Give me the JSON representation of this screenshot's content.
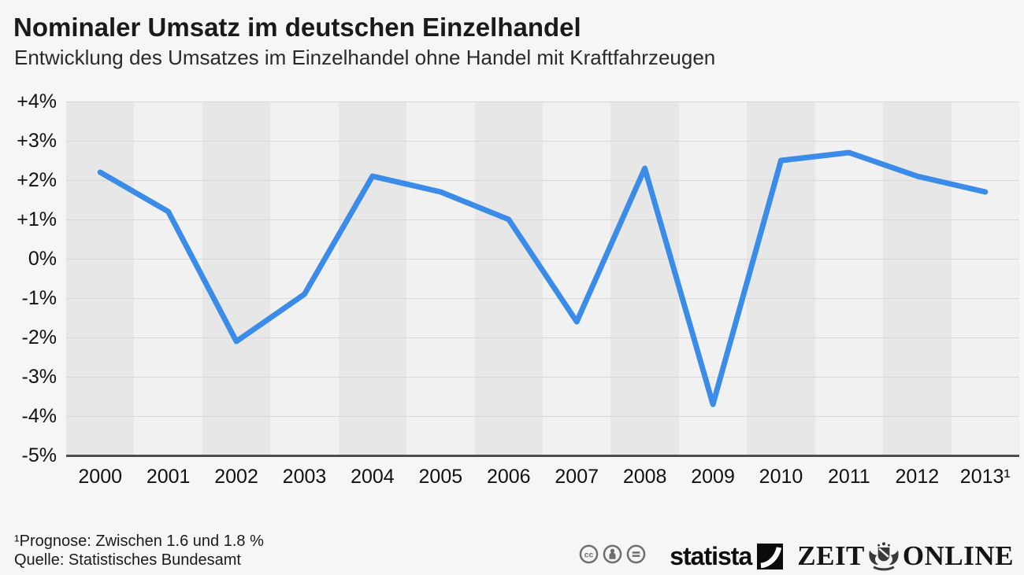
{
  "chart_data": {
    "type": "line",
    "title": "Nominaler Umsatz im deutschen Einzelhandel",
    "subtitle": "Entwicklung des Umsatzes im Einzelhandel ohne Handel mit Kraftfahrzeugen",
    "categories": [
      "2000",
      "2001",
      "2002",
      "2003",
      "2004",
      "2005",
      "2006",
      "2007",
      "2008",
      "2009",
      "2010",
      "2011",
      "2012",
      "2013¹"
    ],
    "values": [
      2.2,
      1.2,
      -2.1,
      -0.9,
      2.1,
      1.7,
      1.0,
      -1.6,
      2.3,
      -3.7,
      2.5,
      2.7,
      2.1,
      1.7
    ],
    "unit": "%",
    "ylim": [
      -5,
      4
    ],
    "ytick_labels": [
      "+4%",
      "+3%",
      "+2%",
      "+1%",
      "0%",
      "-1%",
      "-2%",
      "-3%",
      "-4%",
      "-5%"
    ],
    "xlabel": "",
    "ylabel": "",
    "grid": true,
    "legend": false,
    "line_color": "#3b8ce8",
    "axis_color": "#4d4d4d",
    "band_colors": [
      "#e7e7e7",
      "#f1f1f1"
    ]
  },
  "footer": {
    "footnote": "¹Prognose: Zwischen 1.6 und 1.8 %",
    "source": "Quelle: Statistisches Bundesamt",
    "license_icons": [
      "cc-icon",
      "attribution-icon",
      "no-derivatives-icon"
    ],
    "statista_label": "statista",
    "zeit_online": {
      "left": "ZEIT",
      "right": "ONLINE"
    }
  }
}
